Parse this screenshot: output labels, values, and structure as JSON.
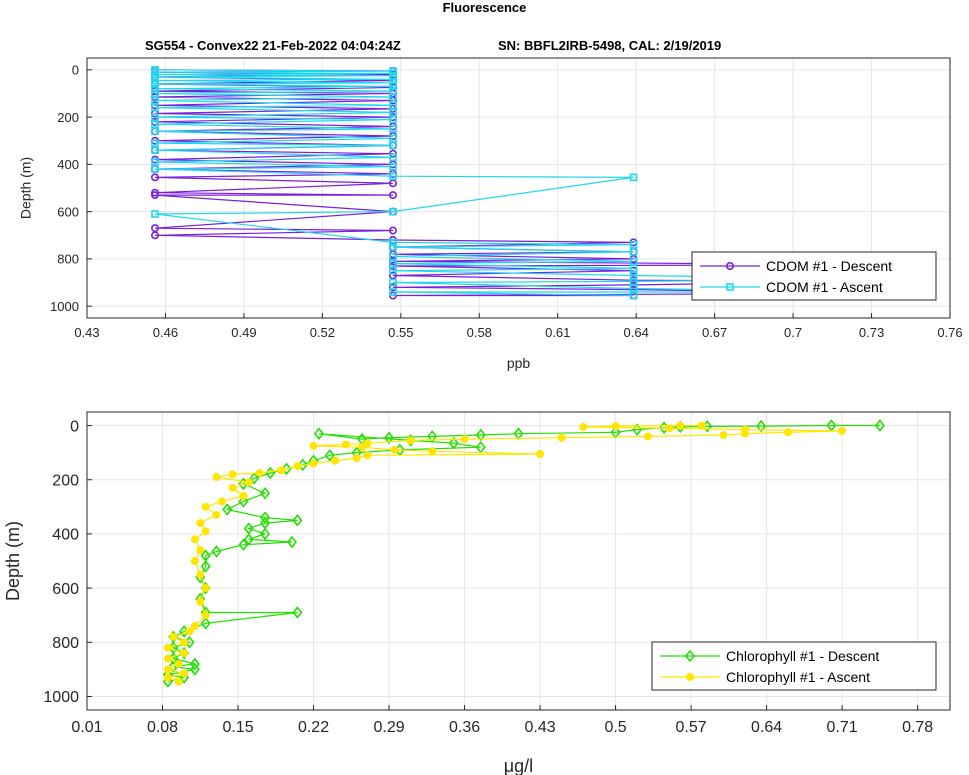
{
  "figure": {
    "title": "Fluorescence",
    "subtitle_left": "SG554 - Convex22 21-Feb-2022 04:04:24Z",
    "subtitle_right": "SN: BBFL2IRB-5498, CAL: 2/19/2019"
  },
  "colors": {
    "cdom_descent": "#7a1fe0",
    "cdom_ascent": "#1fd8ee",
    "chl_descent": "#22e000",
    "chl_ascent": "#ffe600"
  },
  "chart_data": [
    {
      "type": "line",
      "xlabel": "ppb",
      "ylabel": "Depth (m)",
      "xlim": [
        0.43,
        0.76
      ],
      "ylim": [
        1050,
        -50
      ],
      "y_reversed": true,
      "xticks": [
        "0.43",
        "0.46",
        "0.49",
        "0.52",
        "0.55",
        "0.58",
        "0.61",
        "0.64",
        "0.67",
        "0.7",
        "0.73",
        "0.76"
      ],
      "yticks": [
        "0",
        "200",
        "400",
        "600",
        "800",
        "1000"
      ],
      "grid": true,
      "legend_position": "lower-right",
      "series": [
        {
          "name": "CDOM #1 - Descent",
          "marker": "circle",
          "points": [
            [
              0.456,
              0
            ],
            [
              0.547,
              5
            ],
            [
              0.456,
              10
            ],
            [
              0.547,
              20
            ],
            [
              0.456,
              30
            ],
            [
              0.547,
              45
            ],
            [
              0.456,
              60
            ],
            [
              0.547,
              75
            ],
            [
              0.456,
              90
            ],
            [
              0.547,
              100
            ],
            [
              0.456,
              115
            ],
            [
              0.547,
              130
            ],
            [
              0.456,
              150
            ],
            [
              0.547,
              165
            ],
            [
              0.456,
              185
            ],
            [
              0.547,
              200
            ],
            [
              0.456,
              220
            ],
            [
              0.547,
              240
            ],
            [
              0.456,
              260
            ],
            [
              0.547,
              280
            ],
            [
              0.456,
              300
            ],
            [
              0.547,
              320
            ],
            [
              0.456,
              340
            ],
            [
              0.547,
              355
            ],
            [
              0.456,
              380
            ],
            [
              0.547,
              400
            ],
            [
              0.456,
              420
            ],
            [
              0.547,
              440
            ],
            [
              0.456,
              455
            ],
            [
              0.547,
              480
            ],
            [
              0.456,
              520
            ],
            [
              0.547,
              530
            ],
            [
              0.456,
              530
            ],
            [
              0.547,
              600
            ],
            [
              0.456,
              670
            ],
            [
              0.547,
              680
            ],
            [
              0.456,
              700
            ],
            [
              0.547,
              720
            ],
            [
              0.639,
              730
            ],
            [
              0.547,
              750
            ],
            [
              0.639,
              770
            ],
            [
              0.547,
              780
            ],
            [
              0.639,
              800
            ],
            [
              0.547,
              810
            ],
            [
              0.73,
              825
            ],
            [
              0.547,
              830
            ],
            [
              0.639,
              850
            ],
            [
              0.547,
              870
            ],
            [
              0.639,
              890
            ],
            [
              0.73,
              895
            ],
            [
              0.639,
              910
            ],
            [
              0.547,
              920
            ],
            [
              0.639,
              930
            ],
            [
              0.73,
              945
            ],
            [
              0.547,
              955
            ],
            [
              0.639,
              955
            ]
          ]
        },
        {
          "name": "CDOM #1 - Ascent",
          "marker": "square",
          "points": [
            [
              0.639,
              955
            ],
            [
              0.547,
              940
            ],
            [
              0.73,
              940
            ],
            [
              0.639,
              925
            ],
            [
              0.547,
              900
            ],
            [
              0.639,
              895
            ],
            [
              0.73,
              885
            ],
            [
              0.639,
              870
            ],
            [
              0.547,
              850
            ],
            [
              0.639,
              840
            ],
            [
              0.547,
              820
            ],
            [
              0.639,
              810
            ],
            [
              0.547,
              790
            ],
            [
              0.639,
              770
            ],
            [
              0.547,
              750
            ],
            [
              0.639,
              740
            ],
            [
              0.547,
              730
            ],
            [
              0.456,
              610
            ],
            [
              0.547,
              600
            ],
            [
              0.639,
              455
            ],
            [
              0.547,
              450
            ],
            [
              0.456,
              420
            ],
            [
              0.547,
              410
            ],
            [
              0.456,
              390
            ],
            [
              0.547,
              370
            ],
            [
              0.456,
              340
            ],
            [
              0.547,
              320
            ],
            [
              0.456,
              310
            ],
            [
              0.547,
              290
            ],
            [
              0.456,
              260
            ],
            [
              0.547,
              250
            ],
            [
              0.456,
              230
            ],
            [
              0.547,
              210
            ],
            [
              0.456,
              200
            ],
            [
              0.547,
              180
            ],
            [
              0.456,
              160
            ],
            [
              0.547,
              150
            ],
            [
              0.456,
              130
            ],
            [
              0.547,
              115
            ],
            [
              0.456,
              100
            ],
            [
              0.547,
              90
            ],
            [
              0.456,
              80
            ],
            [
              0.547,
              70
            ],
            [
              0.456,
              60
            ],
            [
              0.547,
              55
            ],
            [
              0.456,
              45
            ],
            [
              0.547,
              40
            ],
            [
              0.456,
              30
            ],
            [
              0.547,
              25
            ],
            [
              0.456,
              20
            ],
            [
              0.547,
              15
            ],
            [
              0.456,
              10
            ],
            [
              0.547,
              5
            ],
            [
              0.456,
              0
            ]
          ]
        }
      ]
    },
    {
      "type": "line",
      "xlabel": "μg/l",
      "ylabel": "Depth (m)",
      "xlim": [
        0.01,
        0.81
      ],
      "ylim": [
        1050,
        -50
      ],
      "y_reversed": true,
      "xticks": [
        "0.01",
        "0.08",
        "0.15",
        "0.22",
        "0.29",
        "0.36",
        "0.43",
        "0.5",
        "0.57",
        "0.64",
        "0.71",
        "0.78"
      ],
      "yticks": [
        "0",
        "200",
        "400",
        "600",
        "800",
        "1000"
      ],
      "grid": true,
      "legend_position": "lower-right",
      "series": [
        {
          "name": "Chlorophyll #1 - Descent",
          "marker": "diamond",
          "points": [
            [
              0.745,
              0
            ],
            [
              0.7,
              0
            ],
            [
              0.635,
              2
            ],
            [
              0.585,
              3
            ],
            [
              0.56,
              5
            ],
            [
              0.545,
              8
            ],
            [
              0.52,
              15
            ],
            [
              0.5,
              25
            ],
            [
              0.41,
              30
            ],
            [
              0.375,
              35
            ],
            [
              0.33,
              40
            ],
            [
              0.29,
              45
            ],
            [
              0.265,
              50
            ],
            [
              0.225,
              30
            ],
            [
              0.31,
              55
            ],
            [
              0.35,
              65
            ],
            [
              0.375,
              80
            ],
            [
              0.3,
              90
            ],
            [
              0.26,
              100
            ],
            [
              0.235,
              110
            ],
            [
              0.22,
              130
            ],
            [
              0.21,
              145
            ],
            [
              0.195,
              160
            ],
            [
              0.18,
              175
            ],
            [
              0.165,
              195
            ],
            [
              0.155,
              215
            ],
            [
              0.175,
              250
            ],
            [
              0.155,
              280
            ],
            [
              0.14,
              310
            ],
            [
              0.175,
              340
            ],
            [
              0.205,
              350
            ],
            [
              0.175,
              360
            ],
            [
              0.16,
              380
            ],
            [
              0.175,
              400
            ],
            [
              0.16,
              420
            ],
            [
              0.2,
              430
            ],
            [
              0.155,
              440
            ],
            [
              0.13,
              465
            ],
            [
              0.12,
              480
            ],
            [
              0.12,
              520
            ],
            [
              0.115,
              560
            ],
            [
              0.12,
              600
            ],
            [
              0.115,
              640
            ],
            [
              0.12,
              690
            ],
            [
              0.205,
              690
            ],
            [
              0.12,
              730
            ],
            [
              0.1,
              760
            ],
            [
              0.09,
              780
            ],
            [
              0.105,
              800
            ],
            [
              0.09,
              820
            ],
            [
              0.1,
              840
            ],
            [
              0.09,
              860
            ],
            [
              0.11,
              880
            ],
            [
              0.09,
              890
            ],
            [
              0.11,
              900
            ],
            [
              0.085,
              920
            ],
            [
              0.1,
              930
            ],
            [
              0.085,
              945
            ]
          ]
        },
        {
          "name": "Chlorophyll #1 - Ascent",
          "marker": "dot",
          "points": [
            [
              0.095,
              945
            ],
            [
              0.085,
              930
            ],
            [
              0.1,
              915
            ],
            [
              0.085,
              900
            ],
            [
              0.095,
              880
            ],
            [
              0.085,
              860
            ],
            [
              0.1,
              840
            ],
            [
              0.085,
              820
            ],
            [
              0.1,
              800
            ],
            [
              0.09,
              780
            ],
            [
              0.105,
              760
            ],
            [
              0.11,
              740
            ],
            [
              0.12,
              700
            ],
            [
              0.115,
              650
            ],
            [
              0.12,
              600
            ],
            [
              0.115,
              550
            ],
            [
              0.11,
              500
            ],
            [
              0.115,
              460
            ],
            [
              0.11,
              420
            ],
            [
              0.12,
              390
            ],
            [
              0.115,
              360
            ],
            [
              0.13,
              330
            ],
            [
              0.12,
              300
            ],
            [
              0.135,
              280
            ],
            [
              0.155,
              260
            ],
            [
              0.145,
              230
            ],
            [
              0.16,
              210
            ],
            [
              0.13,
              190
            ],
            [
              0.145,
              180
            ],
            [
              0.17,
              175
            ],
            [
              0.19,
              165
            ],
            [
              0.205,
              150
            ],
            [
              0.22,
              140
            ],
            [
              0.24,
              130
            ],
            [
              0.26,
              120
            ],
            [
              0.27,
              110
            ],
            [
              0.43,
              105
            ],
            [
              0.33,
              95
            ],
            [
              0.295,
              90
            ],
            [
              0.265,
              80
            ],
            [
              0.22,
              75
            ],
            [
              0.25,
              70
            ],
            [
              0.27,
              65
            ],
            [
              0.31,
              55
            ],
            [
              0.36,
              50
            ],
            [
              0.45,
              45
            ],
            [
              0.53,
              40
            ],
            [
              0.6,
              35
            ],
            [
              0.62,
              30
            ],
            [
              0.66,
              25
            ],
            [
              0.71,
              20
            ],
            [
              0.62,
              15
            ],
            [
              0.55,
              10
            ],
            [
              0.47,
              5
            ],
            [
              0.5,
              2
            ],
            [
              0.56,
              0
            ],
            [
              0.58,
              0
            ]
          ]
        }
      ]
    }
  ]
}
